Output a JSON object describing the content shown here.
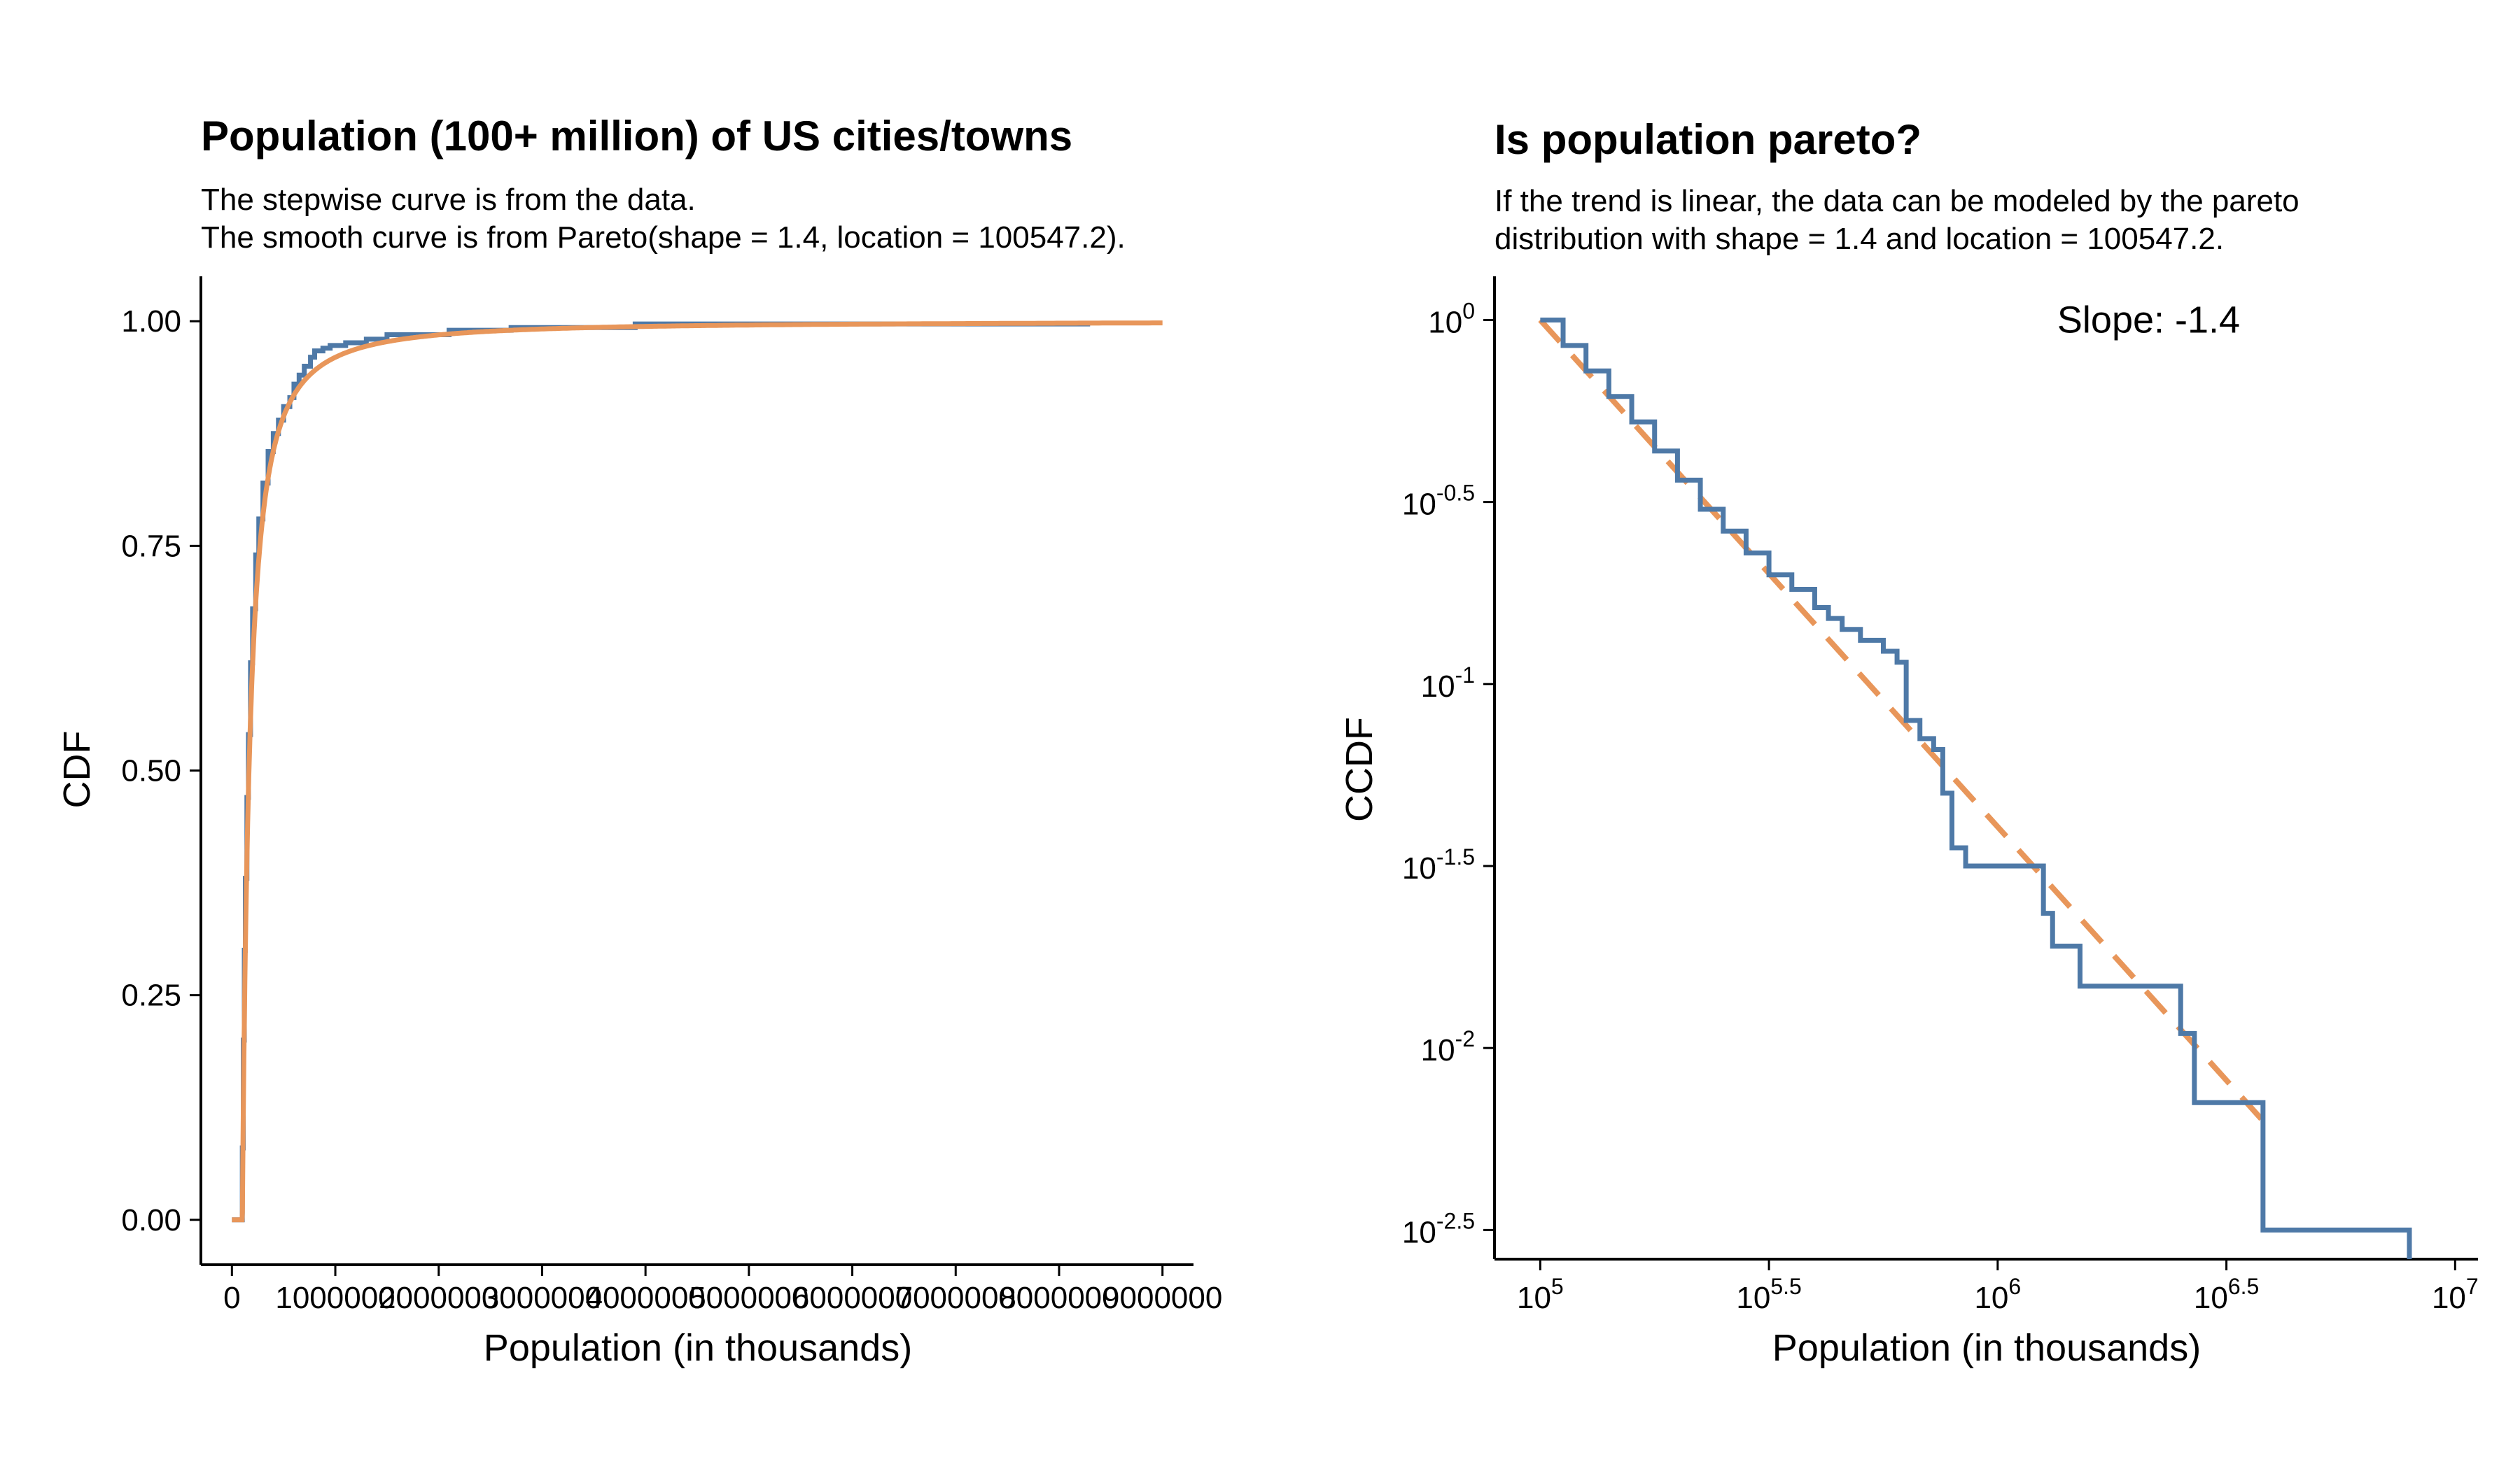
{
  "colors": {
    "data": "#4e79a7",
    "fit": "#e8965a",
    "axis": "#000000"
  },
  "chart_data": [
    {
      "type": "line",
      "title": "Population (100+ million) of US cities/towns",
      "subtitle": [
        "The stepwise curve is from the data.",
        "The smooth curve is from Pareto(shape = 1.4, location = 100547.2)."
      ],
      "xlabel": "Population (in thousands)",
      "ylabel": "CDF",
      "xlim": [
        -300000,
        9300000
      ],
      "ylim": [
        -0.05,
        1.05
      ],
      "xticks": [
        0,
        1000000,
        2000000,
        3000000,
        4000000,
        5000000,
        6000000,
        7000000,
        8000000,
        9000000
      ],
      "xtick_labels": [
        "0",
        "1000000",
        "2000000",
        "3000000",
        "4000000",
        "5000000",
        "6000000",
        "7000000",
        "8000000",
        "9000000"
      ],
      "yticks": [
        0,
        0.25,
        0.5,
        0.75,
        1
      ],
      "ytick_labels": [
        "0.00",
        "0.25",
        "0.50",
        "0.75",
        "1.00"
      ],
      "grid": false,
      "series": [
        {
          "name": "",
          "style": "step",
          "x": [
            0,
            100547,
            100547,
            110000,
            120000,
            130000,
            145000,
            160000,
            180000,
            200000,
            230000,
            260000,
            300000,
            350000,
            400000,
            450000,
            500000,
            560000,
            600000,
            650000,
            700000,
            760000,
            800000,
            880000,
            950000,
            1100000,
            1300000,
            1500000,
            2100000,
            2700000,
            3900000,
            8300000
          ],
          "y": [
            0,
            0,
            0.08,
            0.2,
            0.3,
            0.38,
            0.47,
            0.54,
            0.62,
            0.68,
            0.74,
            0.78,
            0.82,
            0.855,
            0.875,
            0.89,
            0.905,
            0.915,
            0.93,
            0.94,
            0.95,
            0.96,
            0.967,
            0.97,
            0.973,
            0.976,
            0.98,
            0.985,
            0.99,
            0.993,
            0.997,
            0.997
          ]
        },
        {
          "name": "",
          "style": "pareto-cdf",
          "shape": 1.4,
          "location": 100547.2,
          "x_start": 0,
          "x_end": 9000000
        }
      ]
    },
    {
      "type": "line",
      "title": "Is population pareto?",
      "subtitle": [
        "If the trend is linear, the data can be modeled by the pareto",
        "distribution with shape = 1.4 and location = 100547.2."
      ],
      "xlabel": "Population (in thousands)",
      "ylabel": "CCDF",
      "xscale": "log10",
      "yscale": "log10",
      "xlim_log10": [
        4.9,
        7.05
      ],
      "ylim_log10": [
        -2.58,
        0.12
      ],
      "xticks_log10": [
        5,
        5.5,
        6,
        6.5,
        7
      ],
      "xtick_labels": [
        [
          "10",
          "5"
        ],
        [
          "10",
          "5.5"
        ],
        [
          "10",
          "6"
        ],
        [
          "10",
          "6.5"
        ],
        [
          "10",
          "7"
        ]
      ],
      "yticks_log10": [
        0,
        -0.5,
        -1,
        -1.5,
        -2,
        -2.5
      ],
      "ytick_labels": [
        [
          "10",
          "0"
        ],
        [
          "10",
          "-0.5"
        ],
        [
          "10",
          "-1"
        ],
        [
          "10",
          "-1.5"
        ],
        [
          "10",
          "-2"
        ],
        [
          "10",
          "-2.5"
        ]
      ],
      "annotation": "Slope: -1.4",
      "annotation_x_log10": 6.33,
      "annotation_y_log10": 0.0,
      "grid": false,
      "series": [
        {
          "name": "",
          "style": "step",
          "x_log10": [
            5.0,
            5.05,
            5.1,
            5.15,
            5.2,
            5.25,
            5.3,
            5.35,
            5.4,
            5.45,
            5.5,
            5.55,
            5.6,
            5.63,
            5.66,
            5.7,
            5.75,
            5.78,
            5.8,
            5.83,
            5.86,
            5.88,
            5.9,
            5.93,
            6.0,
            6.1,
            6.12,
            6.18,
            6.23,
            6.4,
            6.43,
            6.58,
            6.9
          ],
          "y_log10": [
            0.0,
            -0.07,
            -0.14,
            -0.21,
            -0.28,
            -0.36,
            -0.44,
            -0.52,
            -0.58,
            -0.64,
            -0.7,
            -0.74,
            -0.79,
            -0.82,
            -0.85,
            -0.88,
            -0.91,
            -0.94,
            -1.1,
            -1.15,
            -1.18,
            -1.3,
            -1.45,
            -1.5,
            -1.5,
            -1.63,
            -1.72,
            -1.83,
            -1.83,
            -1.96,
            -2.15,
            -2.5,
            -2.58
          ]
        },
        {
          "name": "",
          "style": "dashed",
          "x_log10": [
            5.0,
            6.58
          ],
          "y_log10": [
            0.0,
            -2.2
          ]
        }
      ]
    }
  ]
}
